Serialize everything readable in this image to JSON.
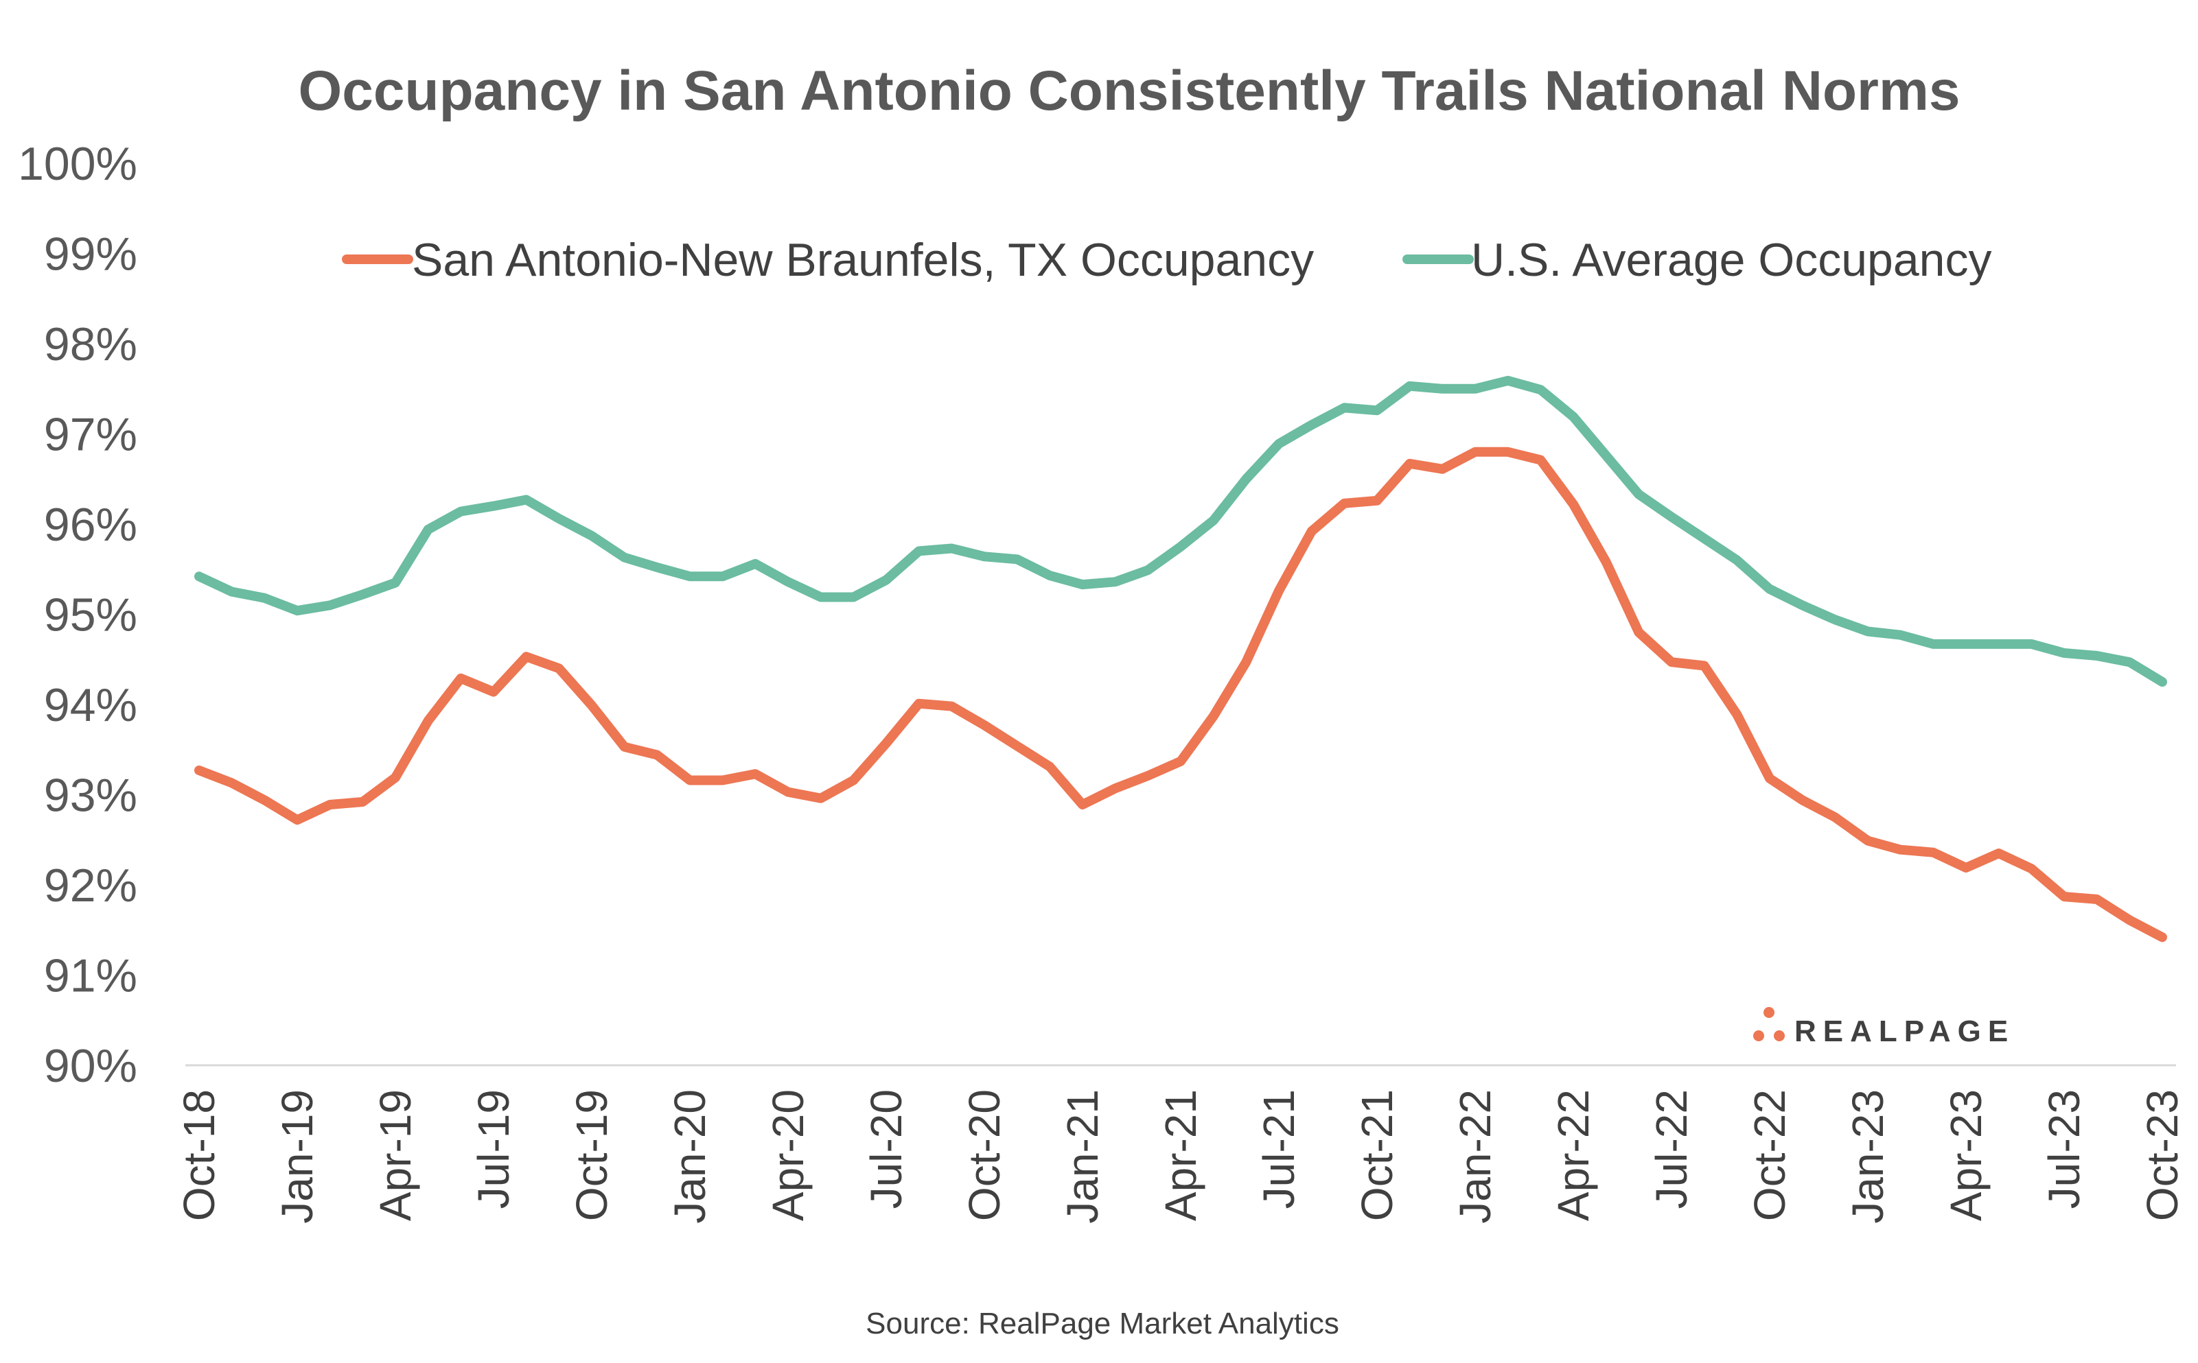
{
  "chart_data": {
    "type": "line",
    "title": "Occupancy in San Antonio Consistently Trails National Norms",
    "source": "Source: RealPage Market Analytics",
    "logo": "REALPAGE",
    "legend_position": "top",
    "grid": false,
    "ylim": [
      90,
      100
    ],
    "y_ticks": [
      "100%",
      "99%",
      "98%",
      "97%",
      "96%",
      "95%",
      "94%",
      "93%",
      "92%",
      "91%",
      "90%"
    ],
    "x_ticks": [
      "Oct-18",
      "Jan-19",
      "Apr-19",
      "Jul-19",
      "Oct-19",
      "Jan-20",
      "Apr-20",
      "Jul-20",
      "Oct-20",
      "Jan-21",
      "Apr-21",
      "Jul-21",
      "Oct-21",
      "Jan-22",
      "Apr-22",
      "Jul-22",
      "Oct-22",
      "Jan-23",
      "Apr-23",
      "Jul-23",
      "Oct-23"
    ],
    "x": [
      "Oct-18",
      "Nov-18",
      "Dec-18",
      "Jan-19",
      "Feb-19",
      "Mar-19",
      "Apr-19",
      "May-19",
      "Jun-19",
      "Jul-19",
      "Aug-19",
      "Sep-19",
      "Oct-19",
      "Nov-19",
      "Dec-19",
      "Jan-20",
      "Feb-20",
      "Mar-20",
      "Apr-20",
      "May-20",
      "Jun-20",
      "Jul-20",
      "Aug-20",
      "Sep-20",
      "Oct-20",
      "Nov-20",
      "Dec-20",
      "Jan-21",
      "Feb-21",
      "Mar-21",
      "Apr-21",
      "May-21",
      "Jun-21",
      "Jul-21",
      "Aug-21",
      "Sep-21",
      "Oct-21",
      "Nov-21",
      "Dec-21",
      "Jan-22",
      "Feb-22",
      "Mar-22",
      "Apr-22",
      "May-22",
      "Jun-22",
      "Jul-22",
      "Aug-22",
      "Sep-22",
      "Oct-22",
      "Nov-22",
      "Dec-22",
      "Jan-23",
      "Feb-23",
      "Mar-23",
      "Apr-23",
      "May-23",
      "Jun-23",
      "Jul-23",
      "Aug-23",
      "Sep-23",
      "Oct-23"
    ],
    "series": [
      {
        "name": "San Antonio-New Braunfels, TX Occupancy",
        "color": "#ED7653",
        "values": [
          93.27,
          93.13,
          92.94,
          92.72,
          92.89,
          92.92,
          93.19,
          93.82,
          94.29,
          94.14,
          94.53,
          94.4,
          93.99,
          93.53,
          93.44,
          93.16,
          93.16,
          93.23,
          93.03,
          92.96,
          93.16,
          93.57,
          94.01,
          93.98,
          93.77,
          93.54,
          93.31,
          92.89,
          93.07,
          93.21,
          93.37,
          93.87,
          94.47,
          95.26,
          95.92,
          96.23,
          96.26,
          96.67,
          96.61,
          96.8,
          96.8,
          96.71,
          96.22,
          95.58,
          94.8,
          94.47,
          94.43,
          93.89,
          93.18,
          92.94,
          92.75,
          92.49,
          92.39,
          92.36,
          92.19,
          92.35,
          92.18,
          91.87,
          91.84,
          91.61,
          91.42
        ]
      },
      {
        "name": "U.S. Average Occupancy",
        "color": "#6BBCA0",
        "values": [
          95.42,
          95.25,
          95.18,
          95.04,
          95.1,
          95.22,
          95.35,
          95.94,
          96.14,
          96.2,
          96.27,
          96.06,
          95.87,
          95.63,
          95.52,
          95.42,
          95.42,
          95.56,
          95.36,
          95.19,
          95.19,
          95.38,
          95.7,
          95.73,
          95.64,
          95.61,
          95.43,
          95.33,
          95.36,
          95.49,
          95.75,
          96.04,
          96.5,
          96.89,
          97.1,
          97.29,
          97.26,
          97.53,
          97.5,
          97.5,
          97.59,
          97.49,
          97.19,
          96.76,
          96.33,
          96.08,
          95.84,
          95.6,
          95.28,
          95.1,
          94.94,
          94.81,
          94.77,
          94.67,
          94.67,
          94.67,
          94.67,
          94.57,
          94.54,
          94.47,
          94.25
        ]
      }
    ]
  }
}
